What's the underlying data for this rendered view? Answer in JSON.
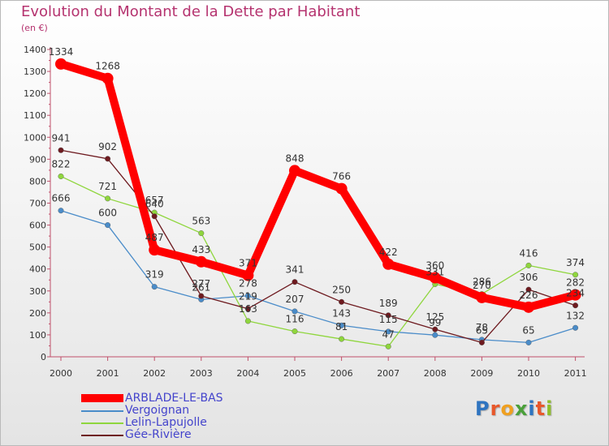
{
  "chart_data": {
    "type": "line",
    "title": "Evolution du Montant de la Dette par Habitant",
    "subtitle": "(en €)",
    "x": [
      "2000",
      "2001",
      "2002",
      "2003",
      "2004",
      "2005",
      "2006",
      "2007",
      "2008",
      "2009",
      "2010",
      "2011"
    ],
    "ylim": [
      0,
      1400
    ],
    "yticks": [
      0,
      100,
      200,
      300,
      400,
      500,
      600,
      700,
      800,
      900,
      1000,
      1100,
      1200,
      1300,
      1400
    ],
    "grid": false,
    "legend": "bottom-left",
    "series": [
      {
        "name": "ARBLADE-LE-BAS",
        "color": "#ff0000",
        "values": [
          1334,
          1268,
          487,
          433,
          371,
          848,
          766,
          422,
          360,
          270,
          226,
          282
        ]
      },
      {
        "name": "Vergoignan",
        "color": "#4a8cc9",
        "values": [
          666,
          600,
          319,
          261,
          278,
          207,
          143,
          115,
          99,
          78,
          65,
          132
        ]
      },
      {
        "name": "Lelin-Lapujolle",
        "color": "#8fd63d",
        "values": [
          822,
          721,
          657,
          563,
          163,
          116,
          81,
          47,
          331,
          286,
          416,
          374
        ]
      },
      {
        "name": "Gée-Rivière",
        "color": "#6e1a1f",
        "values": [
          941,
          902,
          640,
          277,
          219,
          341,
          250,
          189,
          125,
          65,
          306,
          234
        ]
      }
    ]
  },
  "logo": {
    "letters": [
      "P",
      "r",
      "o",
      "x",
      "i",
      "t",
      "i"
    ],
    "colors": [
      "#2f74c0",
      "#e8582b",
      "#f0a020",
      "#4aa03a",
      "#2f74c0",
      "#e8582b",
      "#8fbf2a"
    ]
  }
}
